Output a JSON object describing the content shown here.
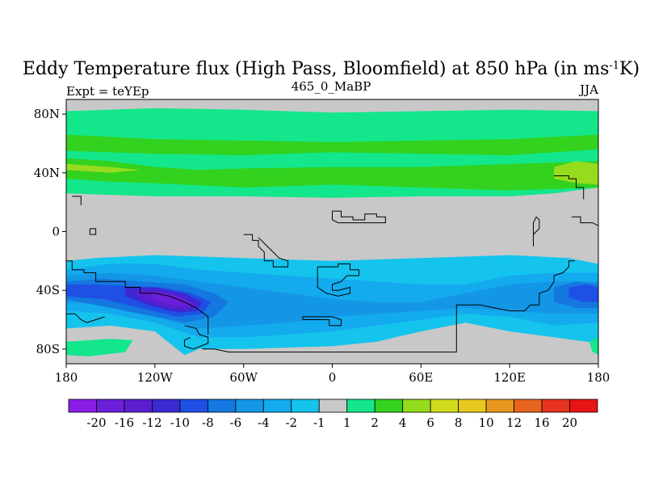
{
  "chart_data": {
    "type": "heatmap",
    "title_main": "Eddy Temperature flux (High Pass, Bloomfield) at 850 hPa (in ms",
    "title_sup": "-1",
    "title_end": "K)",
    "left_subtitle": "Expt = teYEp",
    "center_subtitle": "465_0_MaBP",
    "right_subtitle": "JJA",
    "xlim": [
      -180,
      180
    ],
    "ylim": [
      -90,
      90
    ],
    "y_ticks": [
      {
        "value": 80,
        "label": "80N"
      },
      {
        "value": 40,
        "label": "40N"
      },
      {
        "value": 0,
        "label": "0"
      },
      {
        "value": -40,
        "label": "40S"
      },
      {
        "value": -80,
        "label": "80S"
      }
    ],
    "x_ticks": [
      {
        "value": -180,
        "label": "180"
      },
      {
        "value": -120,
        "label": "120W"
      },
      {
        "value": -60,
        "label": "60W"
      },
      {
        "value": 0,
        "label": "0"
      },
      {
        "value": 60,
        "label": "60E"
      },
      {
        "value": 120,
        "label": "120E"
      },
      {
        "value": 180,
        "label": "180"
      }
    ],
    "colorbar": {
      "labels": [
        "-20",
        "-16",
        "-12",
        "-10",
        "-8",
        "-6",
        "-4",
        "-2",
        "-1",
        "1",
        "2",
        "4",
        "6",
        "8",
        "10",
        "12",
        "16",
        "20"
      ],
      "colors": [
        "#8a1ee6",
        "#6c1fd9",
        "#5a1ed0",
        "#3c28d2",
        "#1e50e6",
        "#1478e0",
        "#1496e6",
        "#14aaee",
        "#14c4ec",
        "#c8c8c8",
        "#14e68c",
        "#32d21e",
        "#96dc1e",
        "#d2dc1e",
        "#e6c81e",
        "#e6961e",
        "#e6641e",
        "#e6321e",
        "#e61414"
      ]
    },
    "fields": [
      {
        "name": "nh-band-2-4",
        "level": "2",
        "color": "#14e68c",
        "polygon": [
          [
            -180,
            82
          ],
          [
            -120,
            84
          ],
          [
            -60,
            83
          ],
          [
            0,
            81
          ],
          [
            60,
            82
          ],
          [
            120,
            83
          ],
          [
            180,
            82
          ],
          [
            180,
            30
          ],
          [
            150,
            26
          ],
          [
            120,
            24
          ],
          [
            60,
            24
          ],
          [
            0,
            23
          ],
          [
            -60,
            24
          ],
          [
            -120,
            24
          ],
          [
            -180,
            26
          ]
        ]
      },
      {
        "name": "nh-band-4-6",
        "level": "4",
        "color": "#32d21e",
        "polygon": [
          [
            -180,
            66
          ],
          [
            -120,
            63
          ],
          [
            -60,
            62
          ],
          [
            0,
            61
          ],
          [
            60,
            62
          ],
          [
            120,
            63
          ],
          [
            180,
            66
          ],
          [
            180,
            56
          ],
          [
            120,
            52
          ],
          [
            60,
            53
          ],
          [
            0,
            54
          ],
          [
            -60,
            52
          ],
          [
            -120,
            53
          ],
          [
            -180,
            55
          ]
        ]
      },
      {
        "name": "nh-band-4-6b",
        "level": "4",
        "color": "#32d21e",
        "polygon": [
          [
            -180,
            50
          ],
          [
            -150,
            48
          ],
          [
            -120,
            44
          ],
          [
            -90,
            42
          ],
          [
            -60,
            43
          ],
          [
            0,
            44
          ],
          [
            60,
            44
          ],
          [
            120,
            46
          ],
          [
            180,
            48
          ],
          [
            180,
            30
          ],
          [
            120,
            28
          ],
          [
            60,
            30
          ],
          [
            0,
            32
          ],
          [
            -60,
            30
          ],
          [
            -120,
            33
          ],
          [
            -150,
            34
          ],
          [
            -180,
            36
          ]
        ]
      },
      {
        "name": "nh-band-6-8",
        "level": "6",
        "color": "#96dc1e",
        "polygon": [
          [
            150,
            44
          ],
          [
            165,
            48
          ],
          [
            180,
            46
          ],
          [
            180,
            32
          ],
          [
            165,
            33
          ],
          [
            150,
            36
          ]
        ]
      },
      {
        "name": "nh-band-6-8w",
        "level": "6",
        "color": "#96dc1e",
        "polygon": [
          [
            -180,
            42
          ],
          [
            -150,
            40
          ],
          [
            -130,
            42
          ],
          [
            -150,
            44
          ],
          [
            -180,
            46
          ]
        ]
      },
      {
        "name": "sh-band-m1",
        "level": "-1",
        "color": "#14c4ec",
        "polygon": [
          [
            -180,
            -20
          ],
          [
            -160,
            -18
          ],
          [
            -120,
            -16
          ],
          [
            -60,
            -18
          ],
          [
            0,
            -20
          ],
          [
            60,
            -18
          ],
          [
            120,
            -16
          ],
          [
            160,
            -18
          ],
          [
            180,
            -22
          ],
          [
            180,
            -76
          ],
          [
            150,
            -72
          ],
          [
            120,
            -68
          ],
          [
            90,
            -62
          ],
          [
            60,
            -68
          ],
          [
            30,
            -75
          ],
          [
            0,
            -78
          ],
          [
            -60,
            -80
          ],
          [
            -90,
            -80
          ],
          [
            -100,
            -84
          ],
          [
            -120,
            -68
          ],
          [
            -150,
            -64
          ],
          [
            -180,
            -66
          ]
        ]
      },
      {
        "name": "sh-band-m2",
        "level": "-2",
        "color": "#14aaee",
        "polygon": [
          [
            -180,
            -26
          ],
          [
            -150,
            -22
          ],
          [
            -120,
            -22
          ],
          [
            -90,
            -26
          ],
          [
            -60,
            -28
          ],
          [
            -30,
            -30
          ],
          [
            0,
            -32
          ],
          [
            30,
            -34
          ],
          [
            60,
            -36
          ],
          [
            90,
            -36
          ],
          [
            120,
            -30
          ],
          [
            150,
            -28
          ],
          [
            180,
            -28
          ],
          [
            180,
            -62
          ],
          [
            150,
            -64
          ],
          [
            120,
            -58
          ],
          [
            90,
            -56
          ],
          [
            60,
            -60
          ],
          [
            30,
            -64
          ],
          [
            0,
            -68
          ],
          [
            -30,
            -70
          ],
          [
            -60,
            -72
          ],
          [
            -90,
            -72
          ],
          [
            -120,
            -62
          ],
          [
            -150,
            -56
          ],
          [
            -180,
            -54
          ]
        ]
      },
      {
        "name": "sh-band-m4",
        "level": "-4",
        "color": "#1496e6",
        "polygon": [
          [
            -180,
            -30
          ],
          [
            -150,
            -28
          ],
          [
            -120,
            -30
          ],
          [
            -90,
            -34
          ],
          [
            -60,
            -38
          ],
          [
            -30,
            -42
          ],
          [
            0,
            -46
          ],
          [
            30,
            -48
          ],
          [
            60,
            -48
          ],
          [
            90,
            -42
          ],
          [
            120,
            -36
          ],
          [
            150,
            -34
          ],
          [
            180,
            -34
          ],
          [
            180,
            -56
          ],
          [
            150,
            -56
          ],
          [
            120,
            -54
          ],
          [
            90,
            -52
          ],
          [
            60,
            -54
          ],
          [
            30,
            -56
          ],
          [
            0,
            -58
          ],
          [
            -30,
            -62
          ],
          [
            -60,
            -64
          ],
          [
            -90,
            -66
          ],
          [
            -120,
            -58
          ],
          [
            -150,
            -50
          ],
          [
            -180,
            -48
          ]
        ]
      },
      {
        "name": "sh-band-m6",
        "level": "-6",
        "color": "#1478e0",
        "polygon": [
          [
            -180,
            -34
          ],
          [
            -155,
            -32
          ],
          [
            -130,
            -34
          ],
          [
            -100,
            -36
          ],
          [
            -80,
            -42
          ],
          [
            -70,
            -48
          ],
          [
            -80,
            -58
          ],
          [
            -100,
            -62
          ],
          [
            -130,
            -56
          ],
          [
            -160,
            -50
          ],
          [
            -180,
            -46
          ]
        ]
      },
      {
        "name": "sh-band-m6e",
        "level": "-6",
        "color": "#1478e0",
        "polygon": [
          [
            150,
            -38
          ],
          [
            165,
            -34
          ],
          [
            180,
            -36
          ],
          [
            180,
            -52
          ],
          [
            165,
            -52
          ],
          [
            150,
            -48
          ]
        ]
      },
      {
        "name": "sh-band-m8",
        "level": "-8",
        "color": "#1e50e6",
        "polygon": [
          [
            -180,
            -36
          ],
          [
            -160,
            -36
          ],
          [
            -140,
            -37
          ],
          [
            -115,
            -38
          ],
          [
            -95,
            -42
          ],
          [
            -82,
            -48
          ],
          [
            -88,
            -56
          ],
          [
            -105,
            -58
          ],
          [
            -130,
            -52
          ],
          [
            -155,
            -46
          ],
          [
            -180,
            -44
          ]
        ]
      },
      {
        "name": "sh-band-m8e",
        "level": "-8",
        "color": "#1e50e6",
        "polygon": [
          [
            160,
            -38
          ],
          [
            172,
            -36
          ],
          [
            180,
            -38
          ],
          [
            180,
            -48
          ],
          [
            170,
            -48
          ],
          [
            160,
            -45
          ]
        ]
      },
      {
        "name": "sh-band-m10",
        "level": "-10",
        "color": "#3c28d2",
        "polygon": [
          [
            -140,
            -38
          ],
          [
            -120,
            -38
          ],
          [
            -100,
            -42
          ],
          [
            -88,
            -48
          ],
          [
            -92,
            -54
          ],
          [
            -105,
            -55
          ],
          [
            -125,
            -50
          ],
          [
            -140,
            -44
          ]
        ]
      },
      {
        "name": "sh-band-m12",
        "level": "-12",
        "color": "#5a1ed0",
        "polygon": [
          [
            -135,
            -40
          ],
          [
            -118,
            -40
          ],
          [
            -102,
            -44
          ],
          [
            -92,
            -50
          ],
          [
            -98,
            -53
          ],
          [
            -110,
            -52
          ],
          [
            -128,
            -47
          ]
        ]
      },
      {
        "name": "sh-band-m16",
        "level": "-16",
        "color": "#6c1fd9",
        "polygon": [
          [
            -125,
            -42
          ],
          [
            -110,
            -42
          ],
          [
            -98,
            -47
          ],
          [
            -96,
            -51
          ],
          [
            -108,
            -50
          ],
          [
            -120,
            -46
          ]
        ]
      },
      {
        "name": "sh-green-80s",
        "level": "2",
        "color": "#14e68c",
        "polygon": [
          [
            -180,
            -75
          ],
          [
            -150,
            -73
          ],
          [
            -135,
            -74
          ],
          [
            -140,
            -82
          ],
          [
            -165,
            -85
          ],
          [
            -180,
            -84
          ]
        ]
      },
      {
        "name": "sh-green-east",
        "level": "2",
        "color": "#14e68c",
        "polygon": [
          [
            174,
            -75
          ],
          [
            180,
            -72
          ],
          [
            180,
            -84
          ],
          [
            176,
            -82
          ]
        ]
      }
    ]
  }
}
